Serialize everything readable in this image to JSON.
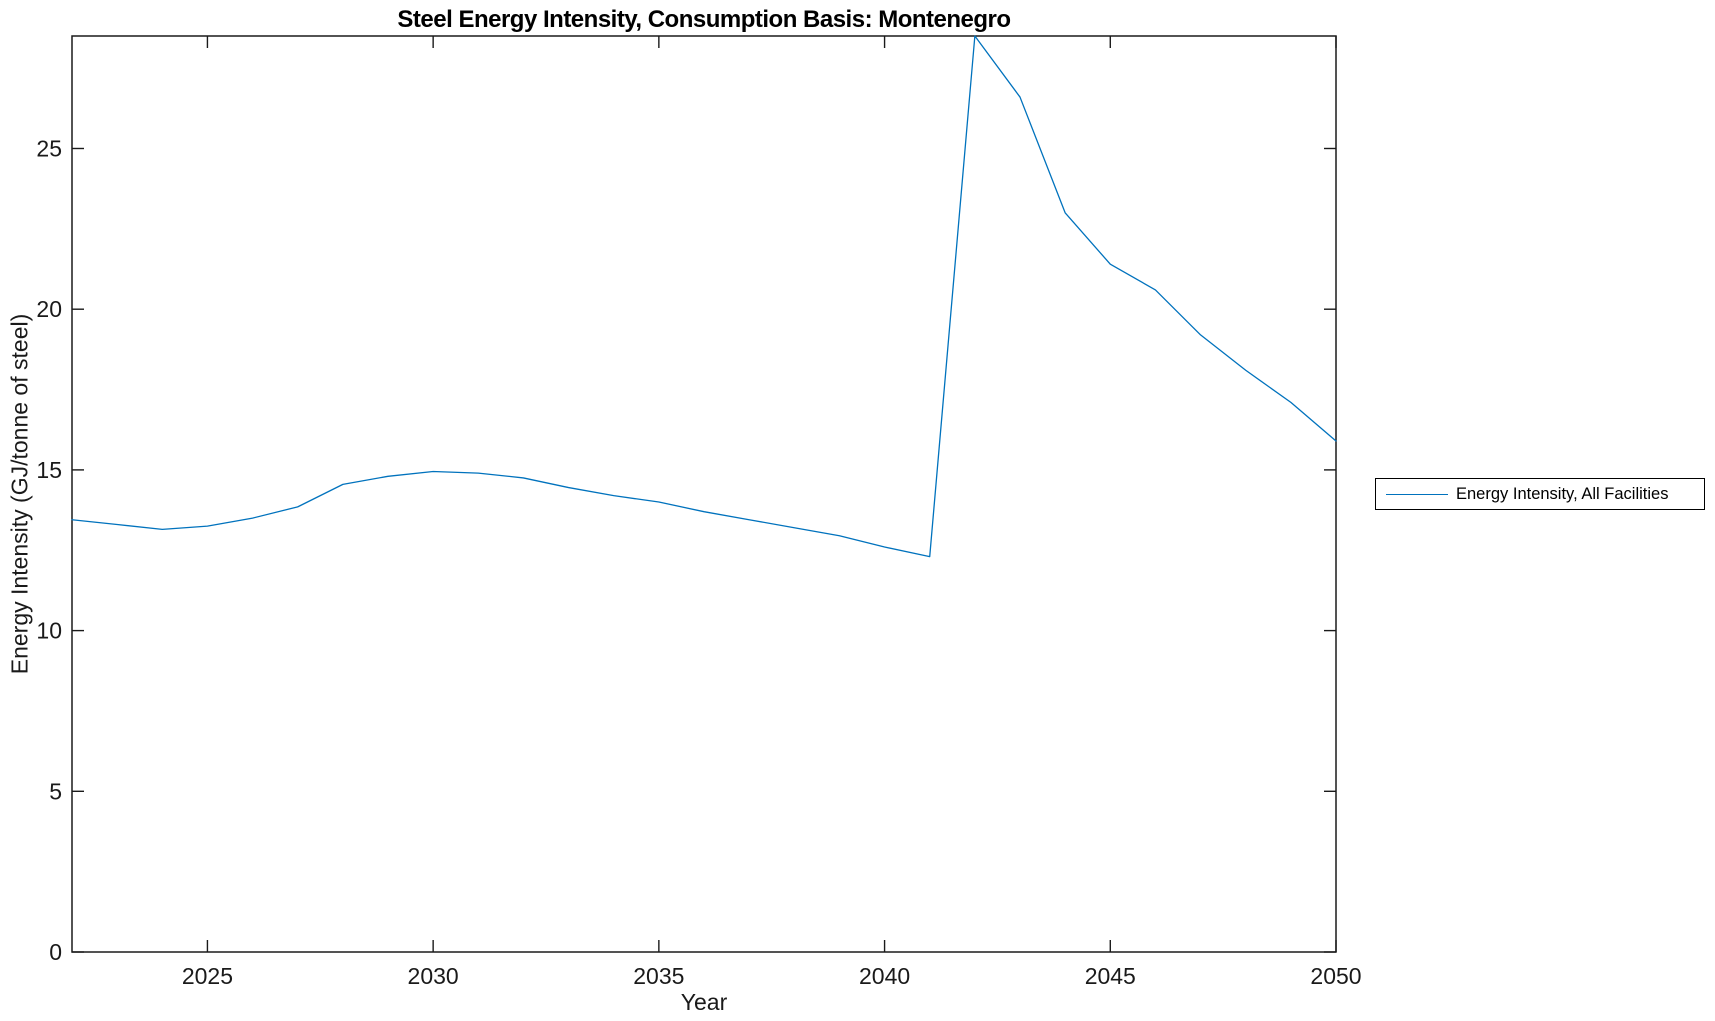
{
  "figure": {
    "background": "#ffffff",
    "axis_color": "#1a1a1a",
    "tick_label_color": "#1a1a1a"
  },
  "chart_data": {
    "type": "line",
    "title": "Steel Energy Intensity, Consumption Basis: Montenegro",
    "xlabel": "Year",
    "ylabel": "Energy Intensity (GJ/tonne of steel)",
    "grid": false,
    "box": true,
    "tick_direction": "in",
    "xlim": [
      2022,
      2050
    ],
    "ylim": [
      0,
      28.5
    ],
    "xticks": [
      2025,
      2030,
      2035,
      2040,
      2045,
      2050
    ],
    "yticks": [
      0,
      5,
      10,
      15,
      20,
      25
    ],
    "legend": {
      "position": "outside-right-center",
      "border_color": "#000000",
      "background": "#ffffff",
      "entries": [
        "Energy Intensity, All Facilities"
      ]
    },
    "series": [
      {
        "name": "Energy Intensity, All Facilities",
        "color": "#0072BD",
        "x": [
          2022,
          2023,
          2024,
          2025,
          2026,
          2027,
          2028,
          2029,
          2030,
          2031,
          2032,
          2033,
          2034,
          2035,
          2036,
          2037,
          2038,
          2039,
          2040,
          2041,
          2042,
          2043,
          2044,
          2045,
          2046,
          2047,
          2048,
          2049,
          2050
        ],
        "y": [
          13.45,
          13.3,
          13.15,
          13.25,
          13.5,
          13.85,
          14.55,
          14.8,
          14.95,
          14.9,
          14.75,
          14.45,
          14.2,
          14.0,
          13.7,
          13.45,
          13.2,
          12.95,
          12.6,
          12.3,
          28.5,
          26.6,
          23.0,
          21.4,
          20.6,
          19.2,
          18.1,
          17.1,
          15.9
        ]
      }
    ]
  }
}
